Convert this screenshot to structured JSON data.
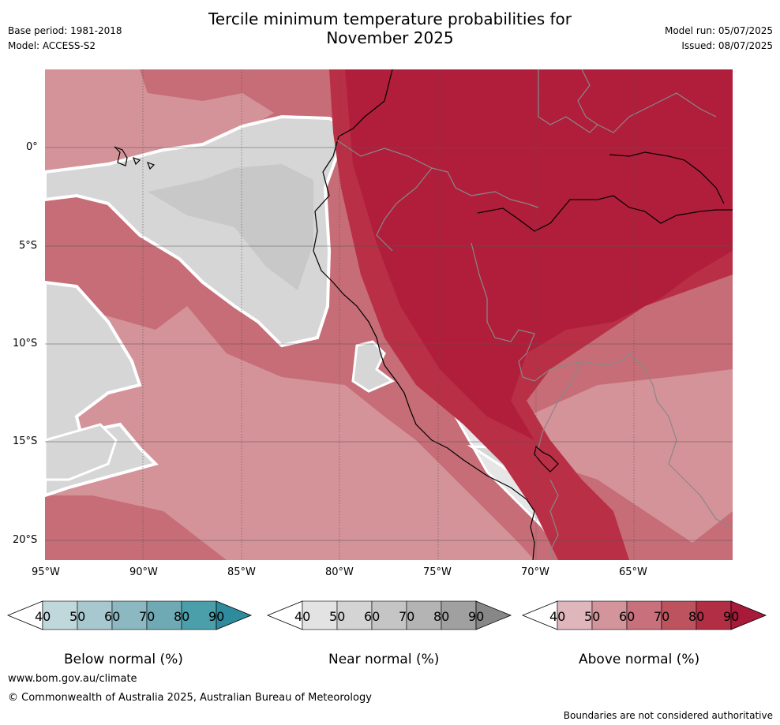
{
  "header": {
    "title_line1": "Tercile minimum temperature probabilities for",
    "title_line2": "November 2025",
    "base_period": "Base period: 1981-2018",
    "model": "Model: ACCESS-S2",
    "model_run": "Model run: 05/07/2025",
    "issued": "Issued: 08/07/2025"
  },
  "map": {
    "lat_labels": [
      "0°",
      "5°S",
      "10°S",
      "15°S",
      "20°S"
    ],
    "lon_labels": [
      "95°W",
      "90°W",
      "85°W",
      "80°W",
      "75°W",
      "70°W",
      "65°W"
    ],
    "colors": {
      "sea_above_70": "#c66d77",
      "above_50": "#d49399",
      "above_80": "#b92f45",
      "above_90": "#b01e3b",
      "near_50": "#d6d6d6",
      "near_60": "#c8c8c8",
      "coast": "#000000",
      "border": "#888888"
    }
  },
  "colorbars": [
    {
      "name": "below",
      "label": "Below normal (%)",
      "ticks": [
        "40",
        "50",
        "60",
        "70",
        "80",
        "90"
      ],
      "colors": [
        "#c0d7dc",
        "#a6c8ce",
        "#8bb8c1",
        "#6faab4",
        "#4b9faa",
        "#2e8b9d"
      ]
    },
    {
      "name": "near",
      "label": "Near normal (%)",
      "ticks": [
        "40",
        "50",
        "60",
        "70",
        "80",
        "90"
      ],
      "colors": [
        "#e3e3e3",
        "#d4d4d4",
        "#c5c5c5",
        "#b4b4b4",
        "#a0a0a0",
        "#878787"
      ]
    },
    {
      "name": "above",
      "label": "Above normal (%)",
      "ticks": [
        "40",
        "50",
        "60",
        "70",
        "80",
        "90"
      ],
      "colors": [
        "#dfb6bb",
        "#d3959b",
        "#c8707b",
        "#bd535f",
        "#b12e44",
        "#a8193a"
      ]
    }
  ],
  "footer": {
    "url": "www.bom.gov.au/climate",
    "copyright": "© Commonwealth of Australia 2025, Australian Bureau of Meteorology",
    "disclaimer": "Boundaries are not considered authoritative"
  }
}
